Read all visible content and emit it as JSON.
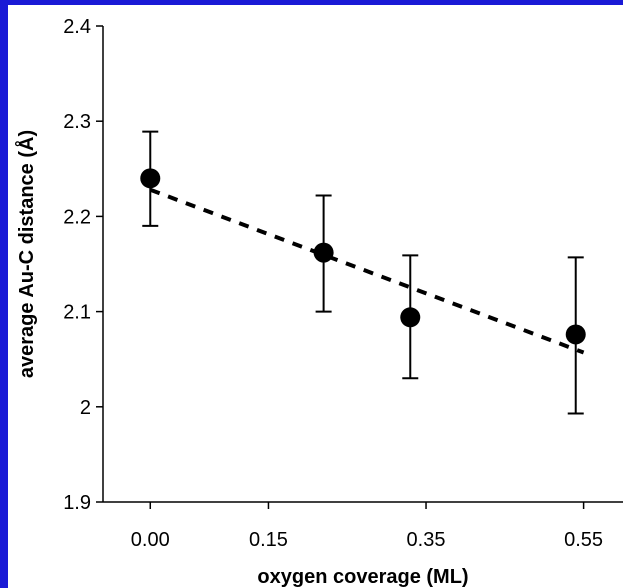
{
  "chart_data": {
    "type": "scatter",
    "title": "",
    "xlabel": "oxygen coverage (ML)",
    "ylabel": "average Au-C distance (Å)",
    "x_tick_labels": [
      "0.00",
      "0.15",
      "0.35",
      "0.55"
    ],
    "x_tick_values": [
      0.0,
      0.15,
      0.35,
      0.55
    ],
    "xlim": [
      -0.06,
      0.6
    ],
    "y_tick_labels": [
      "1.9",
      "2",
      "2.1",
      "2.2",
      "2.3",
      "2.4"
    ],
    "y_tick_values": [
      1.9,
      2.0,
      2.1,
      2.2,
      2.3,
      2.4
    ],
    "ylim": [
      1.9,
      2.4
    ],
    "grid": false,
    "series": [
      {
        "kind": "points_with_error_bars",
        "x": [
          0.0,
          0.22,
          0.33,
          0.54
        ],
        "y": [
          2.24,
          2.162,
          2.094,
          2.076
        ],
        "err_low": [
          2.19,
          2.1,
          2.03,
          1.993
        ],
        "err_high": [
          2.289,
          2.222,
          2.159,
          2.157
        ],
        "color": "#000000"
      },
      {
        "kind": "dashed_trend",
        "x": [
          0.0,
          0.55
        ],
        "y": [
          2.228,
          2.057
        ],
        "color": "#000000"
      }
    ]
  }
}
